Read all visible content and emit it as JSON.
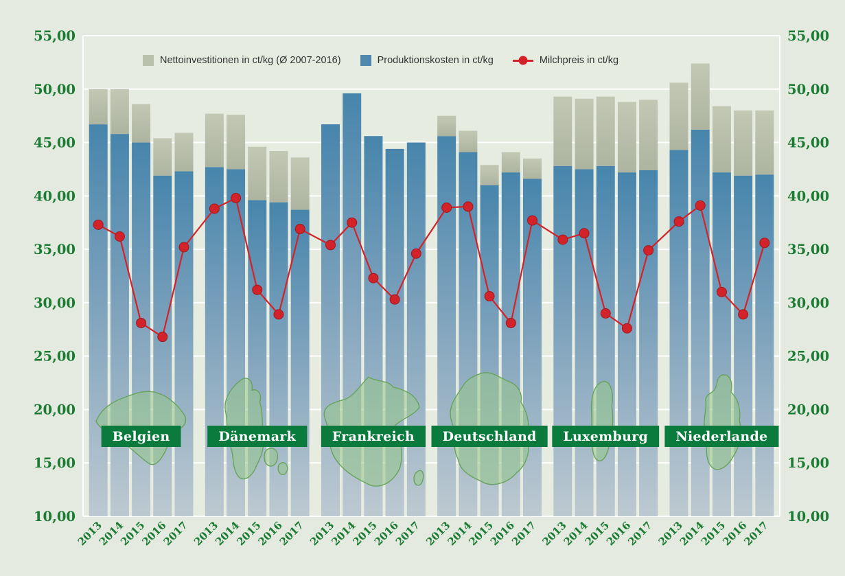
{
  "colors": {
    "background": "#e4eae0",
    "plot_background": "#e7ece1",
    "grid": "#ffffff",
    "axis_green": "#1b7b33",
    "bar_blue_top": "#4785ac",
    "bar_blue_mid": "#7da2bc",
    "bar_blue_bottom": "#bdc9d1",
    "bar_gray_top": "#c3c8b5",
    "bar_gray_bottom": "#adb4a0",
    "milk_red": "#d2232a",
    "milk_red_stroke": "#9f191f",
    "map_green": "#96c688",
    "map_outline": "#67a35c",
    "country_box_green": "#0b7b3d",
    "country_text": "#ffffff"
  },
  "legend": {
    "items": [
      {
        "id": "nettoinvestitionen",
        "label": "Nettoinvestitionen in ct/kg (Ø 2007-2016)",
        "swatch": "#b9c0ab",
        "type": "square"
      },
      {
        "id": "produktionskosten",
        "label": "Produktionskosten in ct/kg",
        "swatch": "#4e88ae",
        "type": "square"
      },
      {
        "id": "milchpreis",
        "label": "Milchpreis in ct/kg",
        "swatch": "#d2232a",
        "type": "line-dot"
      }
    ]
  },
  "chart_data": {
    "type": "combo-stacked-bar-line",
    "ylim": [
      10,
      55
    ],
    "ytick_step": 5,
    "ytick_labels": [
      "55,00",
      "50,00",
      "45,00",
      "40,00",
      "35,00",
      "30,00",
      "25,00",
      "20,00",
      "15,00",
      "10,00"
    ],
    "x_years": [
      "2013",
      "2014",
      "2015",
      "2016",
      "2017"
    ],
    "series_meta": {
      "bar_bottom_segment": "Produktionskosten in ct/kg",
      "bar_top_segment": "Nettoinvestitionen in ct/kg (Ø 2007-2016)",
      "line": "Milchpreis in ct/kg"
    },
    "grid": "horizontal, white lines every 5 units",
    "legend_position": "top-inside",
    "groups": [
      {
        "country": "Belgien",
        "produktionskosten": [
          46.7,
          45.8,
          45.0,
          41.9,
          42.3
        ],
        "nettoinvestitionen": [
          3.3,
          4.2,
          3.6,
          3.5,
          3.6
        ],
        "milchpreis": [
          37.3,
          36.2,
          28.1,
          26.8,
          35.2
        ]
      },
      {
        "country": "Dänemark",
        "produktionskosten": [
          42.7,
          42.5,
          39.6,
          39.4,
          38.7
        ],
        "nettoinvestitionen": [
          5.0,
          5.1,
          5.0,
          4.8,
          4.9
        ],
        "milchpreis": [
          38.8,
          39.8,
          31.2,
          28.9,
          36.9
        ]
      },
      {
        "country": "Frankreich",
        "produktionskosten": [
          46.7,
          49.6,
          45.6,
          44.4,
          45.0
        ],
        "nettoinvestitionen": [
          0,
          0,
          0,
          0,
          0
        ],
        "milchpreis": [
          35.4,
          37.5,
          32.3,
          30.3,
          34.6
        ]
      },
      {
        "country": "Deutschland",
        "produktionskosten": [
          45.6,
          44.1,
          41.0,
          42.2,
          41.6
        ],
        "nettoinvestitionen": [
          1.9,
          2.0,
          1.9,
          1.9,
          1.9
        ],
        "milchpreis": [
          38.9,
          39.0,
          30.6,
          28.1,
          37.7
        ]
      },
      {
        "country": "Luxemburg",
        "produktionskosten": [
          42.8,
          42.5,
          42.8,
          42.2,
          42.4
        ],
        "nettoinvestitionen": [
          6.5,
          6.6,
          6.5,
          6.6,
          6.6
        ],
        "milchpreis": [
          35.9,
          36.5,
          29.0,
          27.6,
          34.9
        ]
      },
      {
        "country": "Niederlande",
        "produktionskosten": [
          44.3,
          46.2,
          42.2,
          41.9,
          42.0
        ],
        "nettoinvestitionen": [
          6.3,
          6.2,
          6.2,
          6.1,
          6.0
        ],
        "milchpreis": [
          37.6,
          39.1,
          31.0,
          28.9,
          35.6
        ]
      }
    ]
  }
}
